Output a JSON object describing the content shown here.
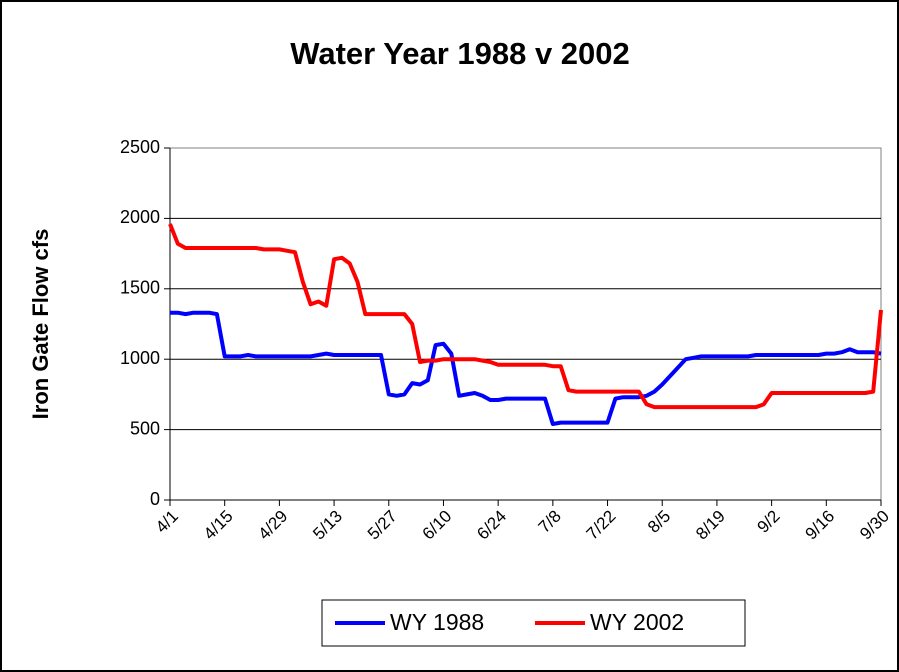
{
  "chart_data": {
    "type": "line",
    "title": "Water Year 1988 v 2002",
    "ylabel": "Iron Gate Flow cfs",
    "categories": [
      "4/1",
      null,
      null,
      null,
      null,
      null,
      null,
      "4/15",
      null,
      null,
      null,
      null,
      null,
      null,
      "4/29",
      null,
      null,
      null,
      null,
      null,
      null,
      "5/13",
      null,
      null,
      null,
      null,
      null,
      null,
      "5/27",
      null,
      null,
      null,
      null,
      null,
      null,
      "6/10",
      null,
      null,
      null,
      null,
      null,
      null,
      "6/24",
      null,
      null,
      null,
      null,
      null,
      null,
      "7/8",
      null,
      null,
      null,
      null,
      null,
      null,
      "7/22",
      null,
      null,
      null,
      null,
      null,
      null,
      "8/5",
      null,
      null,
      null,
      null,
      null,
      null,
      "8/19",
      null,
      null,
      null,
      null,
      null,
      null,
      "9/2",
      null,
      null,
      null,
      null,
      null,
      null,
      "9/16",
      null,
      null,
      null,
      null,
      null,
      null,
      "9/30"
    ],
    "series": [
      {
        "name": "WY 1988",
        "color": "#0000ff",
        "values": [
          1330,
          1330,
          1320,
          1330,
          1330,
          1330,
          1320,
          1020,
          1020,
          1020,
          1030,
          1020,
          1020,
          1020,
          1020,
          1020,
          1020,
          1020,
          1020,
          1030,
          1040,
          1030,
          1030,
          1030,
          1030,
          1030,
          1030,
          1030,
          750,
          740,
          750,
          830,
          820,
          850,
          1100,
          1110,
          1040,
          740,
          750,
          760,
          740,
          710,
          710,
          720,
          720,
          720,
          720,
          720,
          720,
          540,
          550,
          550,
          550,
          550,
          550,
          550,
          550,
          720,
          730,
          730,
          730,
          740,
          770,
          820,
          880,
          940,
          1000,
          1010,
          1020,
          1020,
          1020,
          1020,
          1020,
          1020,
          1020,
          1030,
          1030,
          1030,
          1030,
          1030,
          1030,
          1030,
          1030,
          1030,
          1040,
          1040,
          1050,
          1070,
          1050,
          1050,
          1050,
          1040
        ]
      },
      {
        "name": "WY 2002",
        "color": "#ff0000",
        "values": [
          1960,
          1820,
          1790,
          1790,
          1790,
          1790,
          1790,
          1790,
          1790,
          1790,
          1790,
          1790,
          1780,
          1780,
          1780,
          1770,
          1760,
          1550,
          1390,
          1410,
          1380,
          1710,
          1720,
          1680,
          1550,
          1320,
          1320,
          1320,
          1320,
          1320,
          1320,
          1250,
          980,
          990,
          990,
          1000,
          1000,
          1000,
          1000,
          1000,
          990,
          980,
          960,
          960,
          960,
          960,
          960,
          960,
          960,
          950,
          950,
          780,
          770,
          770,
          770,
          770,
          770,
          770,
          770,
          770,
          770,
          680,
          660,
          660,
          660,
          660,
          660,
          660,
          660,
          660,
          660,
          660,
          660,
          660,
          660,
          660,
          680,
          760,
          760,
          760,
          760,
          760,
          760,
          760,
          760,
          760,
          760,
          760,
          760,
          760,
          770,
          1350
        ]
      }
    ],
    "ylim": [
      0,
      2500
    ],
    "yticks": [
      0,
      500,
      1000,
      1500,
      2000,
      2500
    ],
    "grid": true,
    "legend": "bottom"
  }
}
